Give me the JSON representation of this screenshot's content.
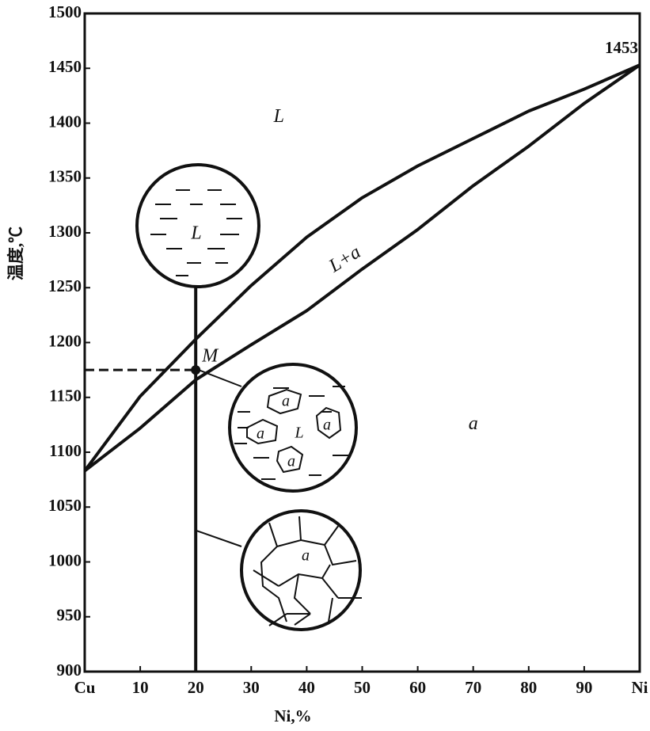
{
  "chart_data": {
    "type": "line",
    "x_label": "Ni,%",
    "y_label": "温度,℃",
    "xlim": [
      0,
      100
    ],
    "ylim": [
      900,
      1500
    ],
    "xticks": [
      {
        "value": 0,
        "label": "Cu"
      },
      10,
      20,
      30,
      40,
      50,
      60,
      70,
      80,
      90,
      {
        "value": 100,
        "label": "Ni"
      }
    ],
    "yticks": [
      900,
      950,
      1000,
      1050,
      1100,
      1150,
      1200,
      1250,
      1300,
      1350,
      1400,
      1450,
      1500
    ],
    "x": [
      0,
      10,
      20,
      30,
      40,
      50,
      60,
      70,
      80,
      90,
      100
    ],
    "series": [
      {
        "color": "#111111",
        "values": [
          1083,
          1151,
          1203,
          1252,
          1296,
          1332,
          1361,
          1386,
          1411,
          1431,
          1453
        ]
      },
      {
        "color": "#111111",
        "values": [
          1083,
          1122,
          1166,
          1198,
          1229,
          1267,
          1303,
          1343,
          1379,
          1418,
          1453
        ]
      }
    ],
    "alloy_line": {
      "x": 20
    },
    "point": {
      "label": "M",
      "x": 20,
      "y": 1175
    },
    "melting_point": {
      "text": "1453",
      "x": 100,
      "y": 1453
    },
    "region_labels": [
      {
        "text": "L",
        "x": 35,
        "y": 1405
      },
      {
        "text": "L+a",
        "x": 47,
        "y": 1275
      },
      {
        "text": "a",
        "x": 70,
        "y": 1125
      }
    ],
    "micrographs": [
      {
        "labels": [
          "L"
        ]
      },
      {
        "labels": [
          "a",
          "a",
          "a",
          "a",
          "L"
        ]
      },
      {
        "labels": [
          "a"
        ]
      }
    ]
  }
}
